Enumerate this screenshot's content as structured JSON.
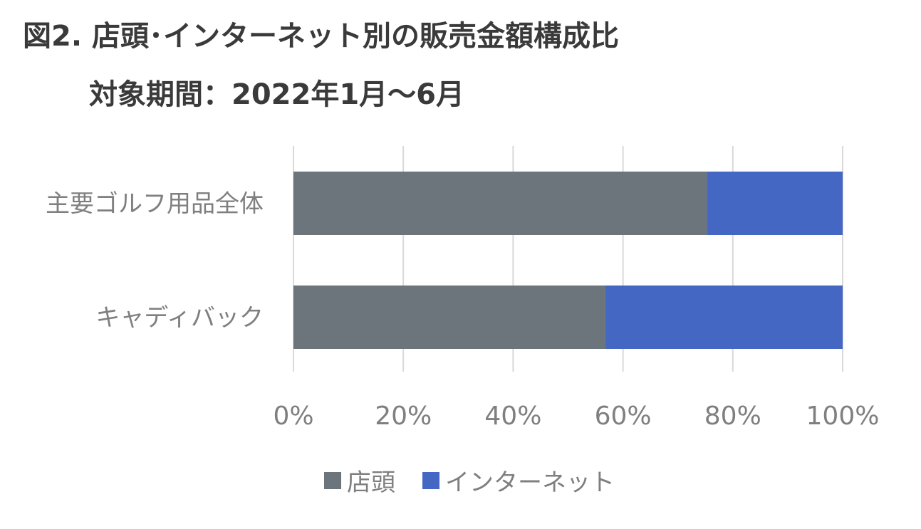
{
  "page": {
    "title": "図2. 店頭･インターネット別の販売金額構成比",
    "subtitle": "対象期間：2022年1月～6月"
  },
  "chart_data": {
    "type": "bar",
    "orientation": "horizontal",
    "stacked": "percent",
    "categories": [
      "主要ゴルフ用品全体",
      "キャディバック"
    ],
    "series": [
      {
        "name": "店頭",
        "values": [
          75.3,
          56.8
        ],
        "color": "#6c757b"
      },
      {
        "name": "インターネット",
        "values": [
          24.7,
          43.2
        ],
        "color": "#4467c4"
      }
    ],
    "xlim": [
      0,
      100
    ],
    "x_ticks": [
      "0%",
      "20%",
      "40%",
      "60%",
      "80%",
      "100%"
    ],
    "grid": "vertical",
    "legend_position": "bottom"
  }
}
